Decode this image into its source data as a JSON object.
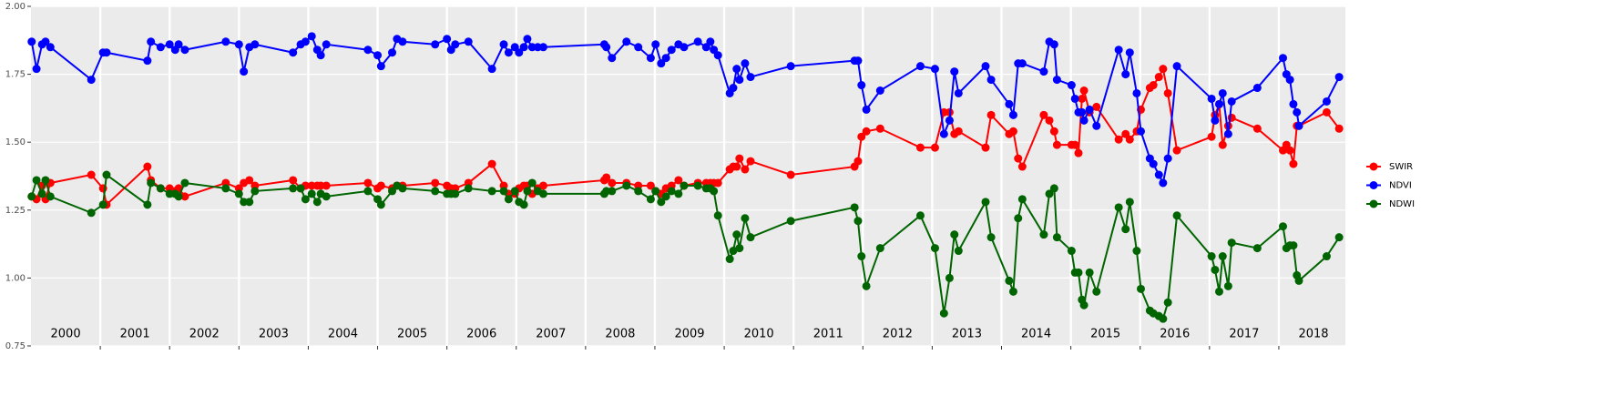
{
  "chart_data": {
    "type": "line",
    "x": [
      2000.01,
      2000.08,
      2000.16,
      2000.21,
      2000.28,
      2000.87,
      2001.04,
      2001.09,
      2001.68,
      2001.73,
      2001.87,
      2002,
      2002.08,
      2002.13,
      2002.22,
      2002.81,
      2003,
      2003.07,
      2003.15,
      2003.23,
      2003.78,
      2003.89,
      2003.96,
      2004.05,
      2004.13,
      2004.18,
      2004.26,
      2004.86,
      2005,
      2005.05,
      2005.21,
      2005.28,
      2005.36,
      2005.83,
      2006,
      2006.06,
      2006.12,
      2006.31,
      2006.65,
      2006.82,
      2006.89,
      2006.98,
      2007.04,
      2007.11,
      2007.16,
      2007.23,
      2007.31,
      2007.39,
      2008.27,
      2008.3,
      2008.38,
      2008.59,
      2008.76,
      2008.94,
      2009.01,
      2009.09,
      2009.16,
      2009.24,
      2009.34,
      2009.42,
      2009.62,
      2009.74,
      2009.8,
      2009.85,
      2009.91,
      2010.08,
      2010.13,
      2010.18,
      2010.22,
      2010.3,
      2010.38,
      2010.96,
      2011.88,
      2011.93,
      2011.98,
      2012.05,
      2012.25,
      2012.83,
      2013.04,
      2013.17,
      2013.25,
      2013.32,
      2013.38,
      2013.77,
      2013.85,
      2014.11,
      2014.17,
      2014.24,
      2014.3,
      2014.61,
      2014.69,
      2014.76,
      2014.8,
      2015.01,
      2015.06,
      2015.11,
      2015.16,
      2015.19,
      2015.27,
      2015.37,
      2015.69,
      2015.79,
      2015.85,
      2015.95,
      2016.01,
      2016.14,
      2016.19,
      2016.27,
      2016.33,
      2016.4,
      2016.53,
      2017.03,
      2017.08,
      2017.14,
      2017.19,
      2017.27,
      2017.32,
      2017.69,
      2018.06,
      2018.11,
      2018.16,
      2018.21,
      2018.26,
      2018.29,
      2018.69,
      2018.87
    ],
    "series": [
      {
        "name": "SWIR",
        "color": "#ff0000",
        "values": [
          1.3,
          1.29,
          1.34,
          1.29,
          1.35,
          1.38,
          1.33,
          1.27,
          1.41,
          1.36,
          1.33,
          1.33,
          1.32,
          1.33,
          1.3,
          1.35,
          1.33,
          1.35,
          1.36,
          1.34,
          1.36,
          1.33,
          1.34,
          1.34,
          1.34,
          1.34,
          1.34,
          1.35,
          1.33,
          1.34,
          1.33,
          1.34,
          1.34,
          1.35,
          1.34,
          1.33,
          1.33,
          1.35,
          1.42,
          1.34,
          1.31,
          1.31,
          1.33,
          1.34,
          1.34,
          1.31,
          1.33,
          1.34,
          1.36,
          1.37,
          1.35,
          1.35,
          1.34,
          1.34,
          1.32,
          1.31,
          1.33,
          1.34,
          1.36,
          1.34,
          1.35,
          1.35,
          1.35,
          1.35,
          1.35,
          1.4,
          1.41,
          1.41,
          1.44,
          1.4,
          1.43,
          1.38,
          1.41,
          1.43,
          1.52,
          1.54,
          1.55,
          1.48,
          1.48,
          1.61,
          1.61,
          1.53,
          1.54,
          1.48,
          1.6,
          1.53,
          1.54,
          1.44,
          1.41,
          1.6,
          1.58,
          1.54,
          1.49,
          1.49,
          1.49,
          1.46,
          1.66,
          1.69,
          1.61,
          1.63,
          1.51,
          1.53,
          1.51,
          1.54,
          1.62,
          1.7,
          1.71,
          1.74,
          1.77,
          1.68,
          1.47,
          1.52,
          1.6,
          1.64,
          1.49,
          1.56,
          1.59,
          1.55,
          1.47,
          1.49,
          1.47,
          1.42,
          1.56,
          1.56,
          1.61,
          1.55
        ]
      },
      {
        "name": "NDVI",
        "color": "#0000ff",
        "values": [
          1.87,
          1.77,
          1.86,
          1.87,
          1.85,
          1.73,
          1.83,
          1.83,
          1.8,
          1.87,
          1.85,
          1.86,
          1.84,
          1.86,
          1.84,
          1.87,
          1.86,
          1.76,
          1.85,
          1.86,
          1.83,
          1.86,
          1.87,
          1.89,
          1.84,
          1.82,
          1.86,
          1.84,
          1.82,
          1.78,
          1.83,
          1.88,
          1.87,
          1.86,
          1.88,
          1.84,
          1.86,
          1.87,
          1.77,
          1.86,
          1.83,
          1.85,
          1.83,
          1.85,
          1.88,
          1.85,
          1.85,
          1.85,
          1.86,
          1.85,
          1.81,
          1.87,
          1.85,
          1.81,
          1.86,
          1.79,
          1.81,
          1.84,
          1.86,
          1.85,
          1.87,
          1.85,
          1.87,
          1.84,
          1.82,
          1.68,
          1.7,
          1.77,
          1.73,
          1.79,
          1.74,
          1.78,
          1.8,
          1.8,
          1.71,
          1.62,
          1.69,
          1.78,
          1.77,
          1.53,
          1.58,
          1.76,
          1.68,
          1.78,
          1.73,
          1.64,
          1.6,
          1.79,
          1.79,
          1.76,
          1.87,
          1.86,
          1.73,
          1.71,
          1.66,
          1.61,
          1.61,
          1.58,
          1.62,
          1.56,
          1.84,
          1.75,
          1.83,
          1.68,
          1.54,
          1.44,
          1.42,
          1.38,
          1.35,
          1.44,
          1.78,
          1.66,
          1.58,
          1.64,
          1.68,
          1.53,
          1.65,
          1.7,
          1.81,
          1.75,
          1.73,
          1.64,
          1.61,
          1.56,
          1.65,
          1.74
        ]
      },
      {
        "name": "NDWI",
        "color": "#006400",
        "values": [
          1.3,
          1.36,
          1.31,
          1.36,
          1.3,
          1.24,
          1.27,
          1.38,
          1.27,
          1.35,
          1.33,
          1.31,
          1.31,
          1.3,
          1.35,
          1.33,
          1.31,
          1.28,
          1.28,
          1.32,
          1.33,
          1.33,
          1.29,
          1.31,
          1.28,
          1.31,
          1.3,
          1.32,
          1.29,
          1.27,
          1.32,
          1.34,
          1.33,
          1.32,
          1.31,
          1.31,
          1.31,
          1.33,
          1.32,
          1.32,
          1.29,
          1.32,
          1.28,
          1.27,
          1.32,
          1.35,
          1.32,
          1.31,
          1.31,
          1.32,
          1.32,
          1.34,
          1.32,
          1.29,
          1.32,
          1.28,
          1.3,
          1.32,
          1.31,
          1.34,
          1.34,
          1.33,
          1.33,
          1.32,
          1.23,
          1.07,
          1.1,
          1.16,
          1.11,
          1.22,
          1.15,
          1.21,
          1.26,
          1.21,
          1.08,
          0.97,
          1.11,
          1.23,
          1.11,
          0.87,
          1.0,
          1.16,
          1.1,
          1.28,
          1.15,
          0.99,
          0.95,
          1.22,
          1.29,
          1.16,
          1.31,
          1.33,
          1.15,
          1.1,
          1.02,
          1.02,
          0.92,
          0.9,
          1.02,
          0.95,
          1.26,
          1.18,
          1.28,
          1.1,
          0.96,
          0.88,
          0.87,
          0.86,
          0.85,
          0.91,
          1.23,
          1.08,
          1.03,
          0.95,
          1.08,
          0.97,
          1.13,
          1.11,
          1.19,
          1.11,
          1.12,
          1.12,
          1.01,
          0.99,
          1.08,
          1.15
        ]
      }
    ],
    "xlim": [
      2000,
      2018.96
    ],
    "xticks": [
      {
        "value": 2000.5,
        "label": "2000"
      },
      {
        "value": 2001.5,
        "label": "2001"
      },
      {
        "value": 2002.5,
        "label": "2002"
      },
      {
        "value": 2003.5,
        "label": "2003"
      },
      {
        "value": 2004.5,
        "label": "2004"
      },
      {
        "value": 2005.5,
        "label": "2005"
      },
      {
        "value": 2006.5,
        "label": "2006"
      },
      {
        "value": 2007.5,
        "label": "2007"
      },
      {
        "value": 2008.5,
        "label": "2008"
      },
      {
        "value": 2009.5,
        "label": "2009"
      },
      {
        "value": 2010.5,
        "label": "2010"
      },
      {
        "value": 2011.5,
        "label": "2011"
      },
      {
        "value": 2012.5,
        "label": "2012"
      },
      {
        "value": 2013.5,
        "label": "2013"
      },
      {
        "value": 2014.5,
        "label": "2014"
      },
      {
        "value": 2015.5,
        "label": "2015"
      },
      {
        "value": 2016.5,
        "label": "2016"
      },
      {
        "value": 2017.5,
        "label": "2017"
      },
      {
        "value": 2018.5,
        "label": "2018"
      }
    ],
    "xgrid": [
      2001,
      2002,
      2003,
      2004,
      2005,
      2006,
      2007,
      2008,
      2009,
      2010,
      2011,
      2012,
      2013,
      2014,
      2015,
      2016,
      2017,
      2018
    ],
    "ylim": [
      0.75,
      2.0
    ],
    "yticks": [
      {
        "value": 0.75,
        "label": "0.75"
      },
      {
        "value": 1.0,
        "label": "1.00"
      },
      {
        "value": 1.25,
        "label": "1.25"
      },
      {
        "value": 1.5,
        "label": "1.50"
      },
      {
        "value": 1.75,
        "label": "1.75"
      },
      {
        "value": 2.0,
        "label": "2.00"
      }
    ],
    "grid": true,
    "legend": "right"
  }
}
